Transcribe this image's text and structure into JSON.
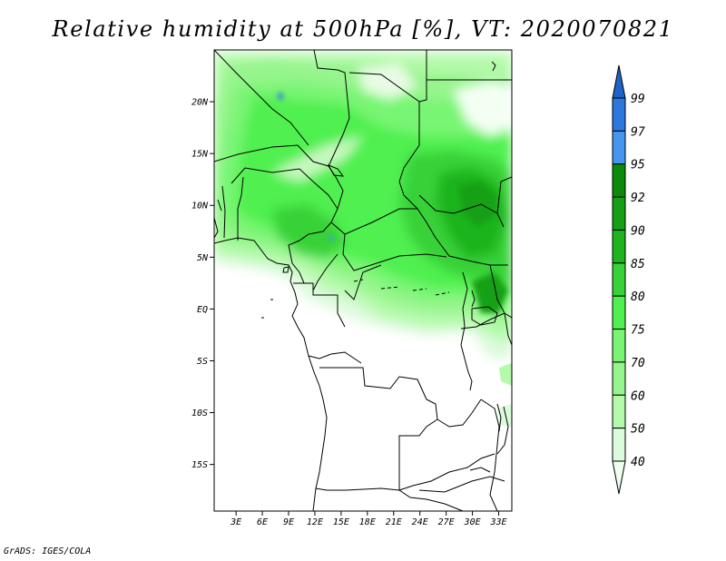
{
  "title": "Relative humidity at 500hPa [%], VT: 2020070821",
  "credit": "GrADS: IGES/COLA",
  "map": {
    "lat_ticks": [
      "20N",
      "15N",
      "10N",
      "5N",
      "EQ",
      "5S",
      "10S",
      "15S"
    ],
    "lon_ticks": [
      "3E",
      "6E",
      "9E",
      "12E",
      "15E",
      "18E",
      "21E",
      "24E",
      "27E",
      "30E",
      "33E"
    ],
    "extent": {
      "lon_min": 0.5,
      "lon_max": 34.5,
      "lat_min": -19.5,
      "lat_max": 25
    }
  },
  "colorbar": {
    "labels": [
      "99",
      "97",
      "95",
      "92",
      "90",
      "85",
      "80",
      "75",
      "70",
      "60",
      "50",
      "40"
    ],
    "colors": [
      "#1e64c8",
      "#2d78dc",
      "#4696f0",
      "#0a8c0a",
      "#14a014",
      "#1eb41e",
      "#37d237",
      "#50f050",
      "#78f573",
      "#96f58c",
      "#b4faaa",
      "#dcfadc",
      "#f0fff0"
    ]
  }
}
